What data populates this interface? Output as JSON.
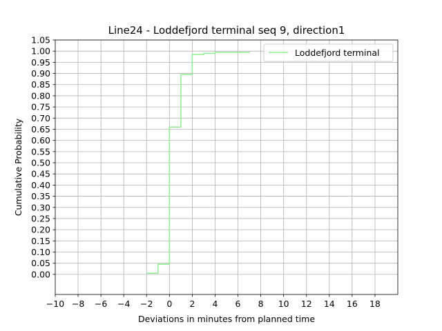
{
  "chart_data": {
    "type": "line",
    "title": "Line24 - Loddefjord terminal seq 9, direction1",
    "xlabel": "Deviations in minutes from planned time",
    "ylabel": "Cumulative Probability",
    "xlim": [
      -10,
      20
    ],
    "ylim": [
      -0.09,
      1.05
    ],
    "x_ticks": [
      -10,
      -8,
      -6,
      -4,
      -2,
      0,
      2,
      4,
      6,
      8,
      10,
      12,
      14,
      16,
      18
    ],
    "x_tick_labels": [
      "−10",
      "−8",
      "−6",
      "−4",
      "−2",
      "0",
      "2",
      "4",
      "6",
      "8",
      "10",
      "12",
      "14",
      "16",
      "18"
    ],
    "y_ticks": [
      0,
      0.05,
      0.1,
      0.15,
      0.2,
      0.25,
      0.3,
      0.35,
      0.4,
      0.45,
      0.5,
      0.55,
      0.6,
      0.65,
      0.7,
      0.75,
      0.8,
      0.85,
      0.9,
      0.95,
      1.0,
      1.05
    ],
    "y_tick_labels": [
      "0.00",
      "0.05",
      "0.10",
      "0.15",
      "0.20",
      "0.25",
      "0.30",
      "0.35",
      "0.40",
      "0.45",
      "0.50",
      "0.55",
      "0.60",
      "0.65",
      "0.70",
      "0.75",
      "0.80",
      "0.85",
      "0.90",
      "0.95",
      "1.00",
      "1.05"
    ],
    "grid": true,
    "legend_position": "top-right",
    "series": [
      {
        "name": "Loddefjord terminal",
        "color": "#90ee90",
        "step": "post",
        "points": [
          {
            "x": -2,
            "y": 0.005
          },
          {
            "x": -1,
            "y": 0.045
          },
          {
            "x": 0,
            "y": 0.66
          },
          {
            "x": 1,
            "y": 0.895
          },
          {
            "x": 2,
            "y": 0.985
          },
          {
            "x": 3,
            "y": 0.99
          },
          {
            "x": 4,
            "y": 0.995
          },
          {
            "x": 7,
            "y": 0.998
          }
        ]
      }
    ]
  }
}
